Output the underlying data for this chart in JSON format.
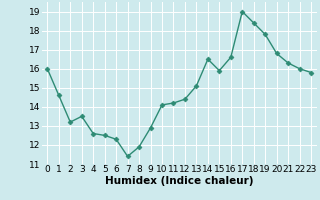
{
  "title": "",
  "x": [
    0,
    1,
    2,
    3,
    4,
    5,
    6,
    7,
    8,
    9,
    10,
    11,
    12,
    13,
    14,
    15,
    16,
    17,
    18,
    19,
    20,
    21,
    22,
    23
  ],
  "y": [
    16.0,
    14.6,
    13.2,
    13.5,
    12.6,
    12.5,
    12.3,
    11.4,
    11.9,
    12.9,
    14.1,
    14.2,
    14.4,
    15.1,
    16.5,
    15.9,
    16.6,
    19.0,
    18.4,
    17.8,
    16.8,
    16.3,
    16.0,
    15.8
  ],
  "line_color": "#2e8b74",
  "marker": "D",
  "markersize": 2.5,
  "linewidth": 1.0,
  "xlabel": "Humidex (Indice chaleur)",
  "ylim": [
    11,
    19.5
  ],
  "xlim": [
    -0.5,
    23.5
  ],
  "yticks": [
    11,
    12,
    13,
    14,
    15,
    16,
    17,
    18,
    19
  ],
  "xtick_labels": [
    "0",
    "1",
    "2",
    "3",
    "4",
    "5",
    "6",
    "7",
    "8",
    "9",
    "10",
    "11",
    "12",
    "13",
    "14",
    "15",
    "16",
    "17",
    "18",
    "19",
    "20",
    "21",
    "22",
    "23"
  ],
  "background_color": "#ceeaed",
  "grid_color": "#ffffff",
  "tick_fontsize": 6.5,
  "xlabel_fontsize": 7.5
}
